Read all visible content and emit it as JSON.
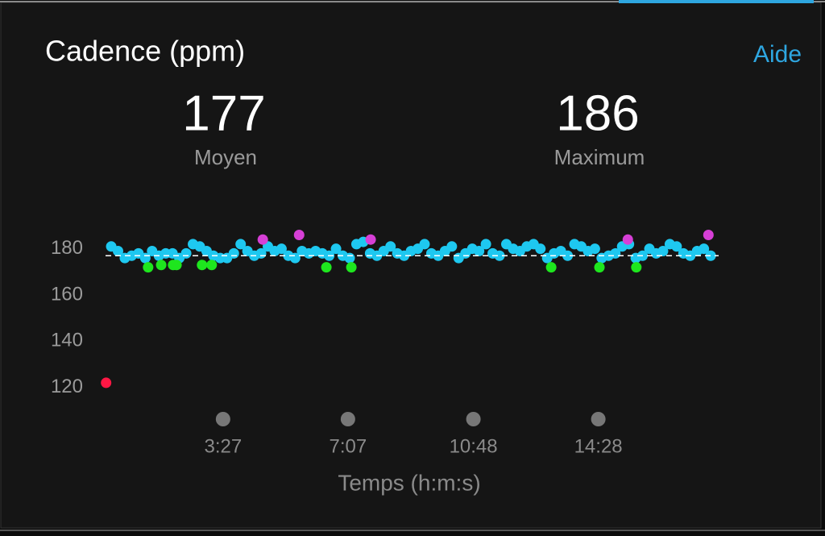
{
  "header": {
    "title": "Cadence (ppm)",
    "help": "Aide"
  },
  "stats": [
    {
      "value": 177,
      "label": "Moyen"
    },
    {
      "value": 186,
      "label": "Maximum"
    }
  ],
  "chart_data": {
    "type": "scatter",
    "x_label": "Temps (h:m:s)",
    "xlim": [
      0,
      1080
    ],
    "xticks": [
      {
        "value": 207,
        "label": "3:27"
      },
      {
        "value": 427,
        "label": "7:07"
      },
      {
        "value": 648,
        "label": "10:48"
      },
      {
        "value": 868,
        "label": "14:28"
      }
    ],
    "ylim": [
      115,
      190
    ],
    "yticks": [
      120,
      140,
      160,
      180
    ],
    "average_line": true,
    "series": [
      {
        "color": "#1ec8f0",
        "x": [
          10,
          22,
          34,
          46,
          58,
          70,
          82,
          94,
          106,
          118,
          130,
          142,
          154,
          166,
          178,
          190,
          202,
          214,
          226,
          238,
          250,
          262,
          274,
          286,
          298,
          310,
          322,
          334,
          346,
          358,
          370,
          382,
          394,
          406,
          418,
          430,
          442,
          454,
          466,
          478,
          490,
          502,
          514,
          526,
          538,
          550,
          562,
          574,
          586,
          598,
          610,
          622,
          634,
          646,
          658,
          670,
          682,
          694,
          706,
          718,
          730,
          742,
          754,
          766,
          778,
          790,
          802,
          814,
          826,
          838,
          850,
          862,
          874,
          886,
          898,
          910,
          922,
          934,
          946,
          958,
          970,
          982,
          994,
          1006,
          1018,
          1030,
          1042,
          1054,
          1066
        ],
        "values": [
          181,
          179,
          176,
          177,
          178,
          176,
          179,
          177,
          178,
          178,
          176,
          178,
          182,
          181,
          179,
          177,
          176,
          176,
          178,
          182,
          179,
          177,
          178,
          181,
          179,
          180,
          177,
          176,
          179,
          178,
          179,
          178,
          177,
          180,
          177,
          176,
          182,
          183,
          178,
          177,
          179,
          181,
          178,
          177,
          179,
          180,
          182,
          178,
          177,
          179,
          181,
          176,
          178,
          180,
          179,
          182,
          178,
          177,
          182,
          180,
          179,
          181,
          182,
          180,
          176,
          178,
          179,
          177,
          182,
          181,
          179,
          180,
          176,
          177,
          178,
          181,
          182,
          176,
          177,
          180,
          178,
          179,
          182,
          181,
          178,
          177,
          179,
          180,
          177
        ]
      },
      {
        "color": "#1ee61e",
        "x": [
          75,
          98,
          119,
          125,
          170,
          187,
          389,
          433,
          785,
          870,
          935
        ],
        "values": [
          172,
          173,
          173,
          173,
          173,
          173,
          172,
          172,
          172,
          172,
          172
        ]
      },
      {
        "color": "#d63fd6",
        "x": [
          277,
          341,
          467,
          920,
          1062
        ],
        "values": [
          184,
          186,
          184,
          184,
          186
        ]
      },
      {
        "color": "#ff1744",
        "x": [
          1
        ],
        "values": [
          122
        ]
      }
    ]
  }
}
